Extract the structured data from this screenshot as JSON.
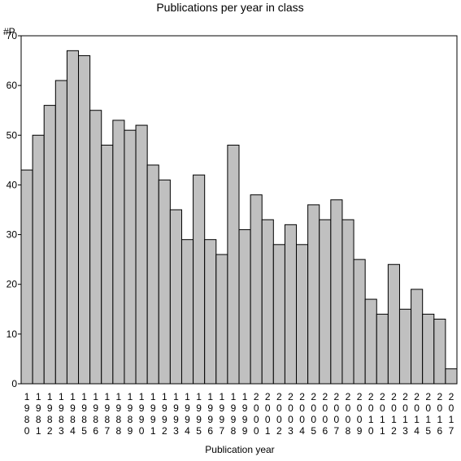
{
  "colors": {
    "bar": "#c0c0c0",
    "stroke": "#000000",
    "background": "#ffffff"
  },
  "chart_data": {
    "type": "bar",
    "title": "Publications per year in class",
    "ylabel": "#P",
    "xlabel": "Publication year",
    "ylim": [
      0,
      70
    ],
    "yticks": [
      0,
      10,
      20,
      30,
      40,
      50,
      60,
      70
    ],
    "grid": false,
    "categories": [
      "1980",
      "1981",
      "1982",
      "1983",
      "1984",
      "1985",
      "1986",
      "1987",
      "1988",
      "1989",
      "1990",
      "1991",
      "1992",
      "1993",
      "1994",
      "1995",
      "1996",
      "1997",
      "1998",
      "1999",
      "2000",
      "2001",
      "2002",
      "2003",
      "2004",
      "2005",
      "2006",
      "2007",
      "2008",
      "2009",
      "2010",
      "2011",
      "2012",
      "2013",
      "2014",
      "2015",
      "2016",
      "2017"
    ],
    "values": [
      43,
      50,
      56,
      61,
      67,
      66,
      55,
      48,
      53,
      51,
      52,
      44,
      41,
      35,
      29,
      42,
      29,
      26,
      48,
      31,
      38,
      33,
      28,
      32,
      28,
      36,
      33,
      37,
      33,
      25,
      17,
      14,
      24,
      15,
      19,
      14,
      13,
      3
    ]
  }
}
